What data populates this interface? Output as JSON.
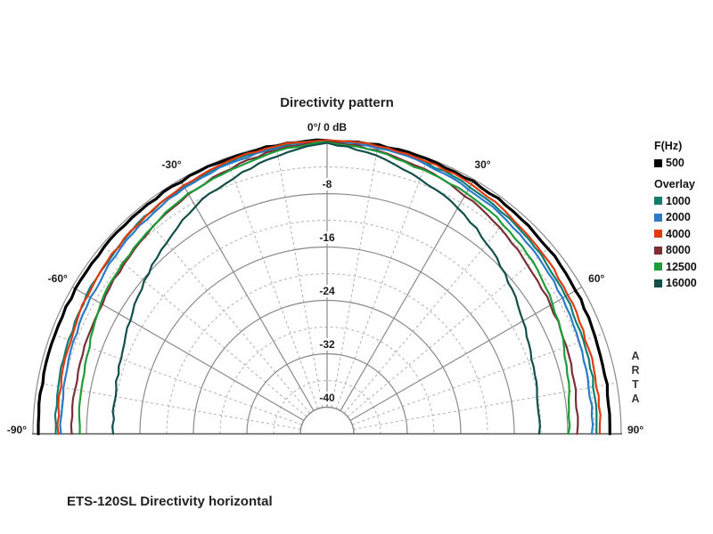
{
  "footer": {
    "caption": "ETS-120SL Directivity horizontal"
  },
  "watermark": {
    "text": "ARTA"
  },
  "legend": {
    "primary_label": "F(Hz)",
    "primary": [
      {
        "label": "500",
        "color": "#000000"
      }
    ],
    "overlay_label": "Overlay",
    "overlays": [
      {
        "label": "1000",
        "color": "#0e7d72"
      },
      {
        "label": "2000",
        "color": "#2b7bc9"
      },
      {
        "label": "4000",
        "color": "#e03c10"
      },
      {
        "label": "8000",
        "color": "#7a2f35"
      },
      {
        "label": "12500",
        "color": "#1f9c3a"
      },
      {
        "label": "16000",
        "color": "#134f4a"
      }
    ]
  },
  "chart_data": {
    "type": "polar",
    "title": "Directivity pattern",
    "subtitle": "",
    "top_label": "0°/ 0 dB",
    "angle_range_deg": [
      -90,
      90
    ],
    "angle_labels": [
      {
        "angle": -90,
        "text": "-90°"
      },
      {
        "angle": -60,
        "text": "-60°"
      },
      {
        "angle": -30,
        "text": "-30°"
      },
      {
        "angle": 30,
        "text": "30°"
      },
      {
        "angle": 60,
        "text": "60°"
      },
      {
        "angle": 90,
        "text": "90°"
      }
    ],
    "db_rings_solid": [
      0,
      -8,
      -16,
      -24,
      -32,
      -40
    ],
    "db_rings_dashed": [
      -4,
      -12,
      -20,
      -28,
      -36
    ],
    "db_ring_labels": [
      {
        "db": -8,
        "text": "-8"
      },
      {
        "db": -16,
        "text": "-16"
      },
      {
        "db": -24,
        "text": "-24"
      },
      {
        "db": -32,
        "text": "-32"
      },
      {
        "db": -40,
        "text": "-40"
      }
    ],
    "angle_lines_solid_deg": [
      -60,
      -30,
      0,
      30,
      60
    ],
    "angle_lines_dashed_deg": [
      -80,
      -70,
      -50,
      -40,
      -20,
      -10,
      10,
      20,
      40,
      50,
      70,
      80
    ],
    "db_min": -40,
    "grid": true,
    "legend_position": "right",
    "angles_deg": [
      -90,
      -80,
      -70,
      -60,
      -50,
      -40,
      -30,
      -20,
      -10,
      0,
      10,
      20,
      30,
      40,
      50,
      60,
      70,
      80,
      90
    ],
    "series": [
      {
        "name": "500",
        "color": "#000000",
        "width": 3.2,
        "values": [
          -0.8,
          -0.75,
          -0.7,
          -0.6,
          -0.5,
          -0.4,
          -0.3,
          -0.2,
          -0.1,
          -0.05,
          -0.1,
          -0.25,
          -0.4,
          -0.6,
          -0.8,
          -1.0,
          -1.3,
          -1.5,
          -1.7
        ]
      },
      {
        "name": "1000",
        "color": "#0e7d72",
        "width": 2.2,
        "values": [
          -3.4,
          -3.2,
          -2.9,
          -2.5,
          -2.1,
          -1.6,
          -1.2,
          -0.8,
          -0.4,
          -0.1,
          -0.4,
          -0.8,
          -1.3,
          -1.8,
          -2.3,
          -2.8,
          -3.2,
          -3.5,
          -3.7
        ]
      },
      {
        "name": "2000",
        "color": "#2b7bc9",
        "width": 2.2,
        "values": [
          -4.2,
          -4.0,
          -3.7,
          -3.2,
          -2.6,
          -2.0,
          -1.5,
          -1.0,
          -0.5,
          -0.15,
          -0.5,
          -1.0,
          -1.6,
          -2.2,
          -2.8,
          -3.4,
          -3.9,
          -4.2,
          -4.4
        ]
      },
      {
        "name": "4000",
        "color": "#e03c10",
        "width": 2.2,
        "values": [
          -3.8,
          -3.5,
          -3.1,
          -2.6,
          -2.1,
          -1.6,
          -1.1,
          -0.6,
          -0.2,
          0,
          -0.2,
          -0.5,
          -0.9,
          -1.4,
          -1.9,
          -2.4,
          -2.8,
          -3.0,
          -3.2
        ]
      },
      {
        "name": "8000",
        "color": "#7a2f35",
        "width": 2.2,
        "values": [
          -5.8,
          -5.7,
          -5.5,
          -5.1,
          -4.4,
          -3.5,
          -2.6,
          -1.7,
          -0.8,
          -0.2,
          -0.9,
          -1.8,
          -2.8,
          -3.8,
          -4.7,
          -5.4,
          -5.9,
          -6.3,
          -6.6
        ]
      },
      {
        "name": "12500",
        "color": "#1f9c3a",
        "width": 2.2,
        "values": [
          -7.0,
          -6.7,
          -6.2,
          -4.9,
          -4.2,
          -3.4,
          -2.5,
          -1.9,
          -1.0,
          -0.3,
          -1.1,
          -2.0,
          -2.4,
          -3.0,
          -3.9,
          -5.0,
          -6.3,
          -7.3,
          -7.9
        ]
      },
      {
        "name": "16000",
        "color": "#134f4a",
        "width": 2.2,
        "values": [
          -12.0,
          -11.8,
          -11.2,
          -10.0,
          -8.4,
          -6.6,
          -4.6,
          -3.2,
          -1.6,
          -0.4,
          -1.7,
          -3.4,
          -4.9,
          -6.8,
          -8.6,
          -10.2,
          -11.4,
          -12.0,
          -12.3
        ]
      }
    ]
  }
}
